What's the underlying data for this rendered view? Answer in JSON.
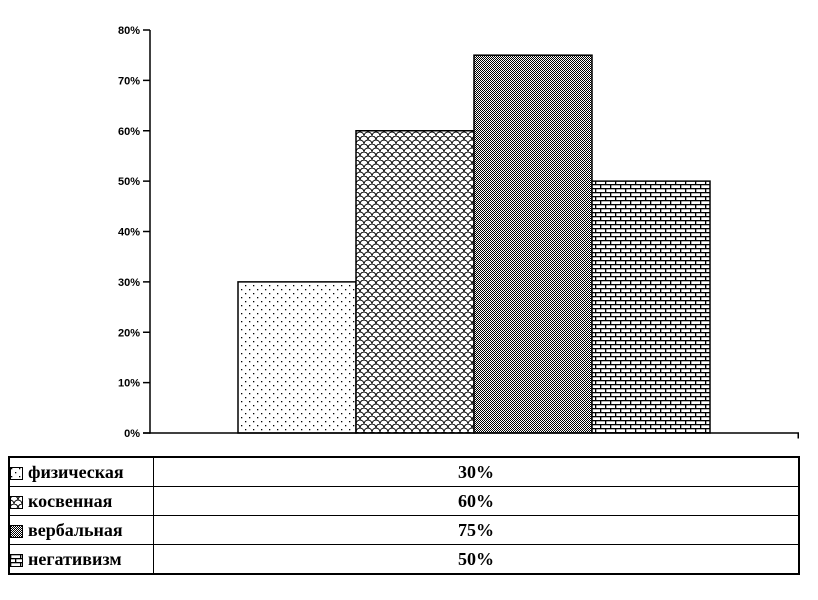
{
  "chart_data": {
    "type": "bar",
    "title": "",
    "xlabel": "",
    "ylabel": "",
    "categories": [
      "физическая",
      "косвенная",
      "вербальная",
      "негативизм"
    ],
    "values": [
      30,
      60,
      75,
      50
    ],
    "series": [
      {
        "label": "физическая",
        "value": 30,
        "value_label": "30%",
        "pattern": "dots"
      },
      {
        "label": "косвенная",
        "value": 60,
        "value_label": "60%",
        "pattern": "scale"
      },
      {
        "label": "вербальная",
        "value": 75,
        "value_label": "75%",
        "pattern": "check"
      },
      {
        "label": "негативизм",
        "value": 50,
        "value_label": "50%",
        "pattern": "brick"
      }
    ],
    "y_ticks": [
      "0%",
      "10%",
      "20%",
      "30%",
      "40%",
      "50%",
      "60%",
      "70%",
      "80%"
    ],
    "ylim": [
      0,
      80
    ],
    "grid": false,
    "legend_position": "bottom-table",
    "colors": {
      "background": "#ffffff",
      "bar_fill_base": "#ffffff",
      "stroke": "#000000",
      "text": "#000000"
    }
  }
}
